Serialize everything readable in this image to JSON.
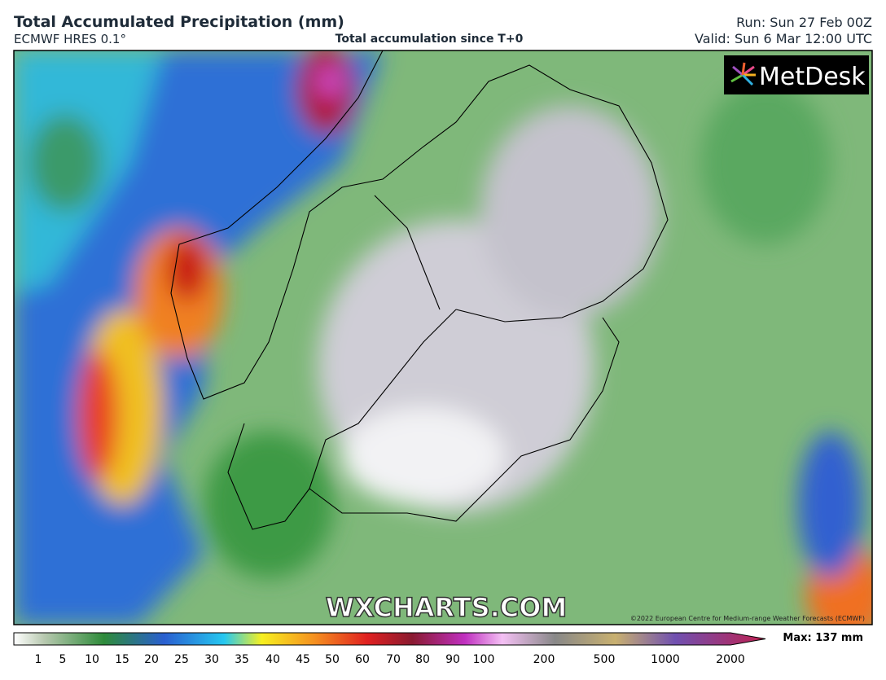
{
  "header": {
    "title": "Total Accumulated Precipitation (mm)",
    "model": "ECMWF HRES 0.1°",
    "subtitle": "Total accumulation since T+0",
    "run": "Run: Sun 27 Feb 00Z",
    "valid": "Valid: Sun 6 Mar 12:00 UTC"
  },
  "map": {
    "logo": "MetDesk",
    "watermark": "WXCHARTS.COM",
    "credit": "©2022 European Centre for Medium-range Weather Forecasts (ECMWF)"
  },
  "legend": {
    "labels": [
      1,
      5,
      10,
      15,
      20,
      25,
      30,
      35,
      40,
      45,
      50,
      60,
      70,
      80,
      90,
      100,
      200,
      500,
      1000,
      2000
    ],
    "max": "Max: 137 mm"
  }
}
